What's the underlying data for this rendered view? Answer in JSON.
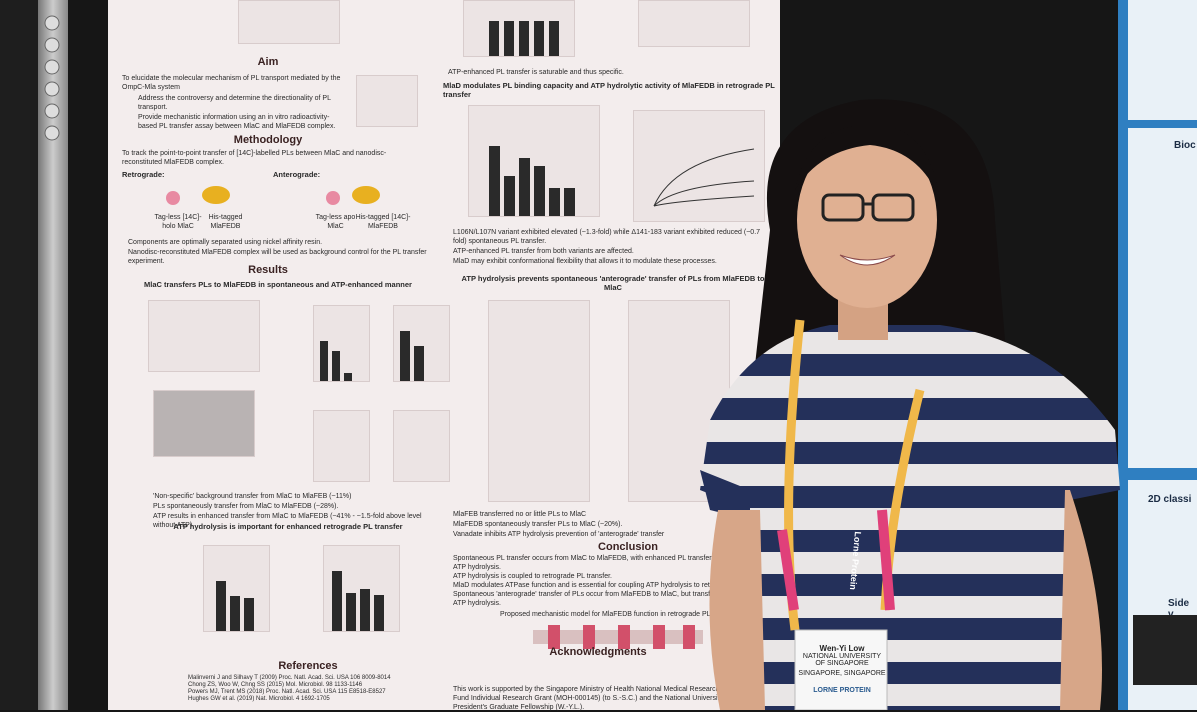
{
  "poster": {
    "aim": {
      "heading": "Aim",
      "lines": [
        "To elucidate the molecular mechanism of PL transport mediated by the OmpC-Mla system",
        "Address the controversy and determine the directionality of PL transport.",
        "Provide mechanistic information using an in vitro radioactivity-based PL transfer assay between MlaC and MlaFEDB complex."
      ]
    },
    "methodology": {
      "heading": "Methodology",
      "lines": [
        "To track the point-to-point transfer of [14C]-labelled PLs between MlaC and nanodisc-reconstituted MlaFEDB complex.",
        "Components are optimally separated using nickel affinity resin.",
        "Nanodisc-reconstituted MlaFEDB complex will be used as background control for the PL transfer experiment."
      ],
      "retrograde": "Retrograde:",
      "anterograde": "Anterograde:",
      "labels": [
        "Tag-less [14C]-holo MlaC",
        "His-tagged MlaFEDB",
        "Tag-less apo MlaC",
        "His-tagged [14C]-MlaFEDB"
      ]
    },
    "results": {
      "heading": "Results",
      "subtitle1": "MlaC transfers PLs to MlaFEDB in spontaneous and ATP-enhanced manner",
      "lines1": [
        "'Non-specific' background transfer from MlaC to MlaFEB (~11%)",
        "PLs spontaneously transfer from MlaC to MlaFEDB (~28%).",
        "ATP results in enhanced transfer from MlaC to MlaFEDB (~41% - ~1.5-fold above level without ATP)."
      ],
      "subtitle2": "ATP hydrolysis is important for enhanced retrograde PL transfer"
    },
    "references": {
      "heading": "References",
      "lines": [
        "Malinverni J and Silhavy T (2009) Proc. Natl. Acad. Sci. USA 106 8009-8014",
        "Chong ZS, Woo W, Chng SS (2015) Mol. Microbiol. 98 1133-1146",
        "Powers MJ, Trent MS (2018) Proc. Natl. Acad. Sci. USA 115 E8518-E8527",
        "Hughes GW et al. (2019) Nat. Microbiol. 4 1692-1705"
      ]
    },
    "right": {
      "line0": "ATP-enhanced PL transfer is saturable and thus specific.",
      "heading1": "MlaD modulates PL binding capacity and ATP hydrolytic activity of MlaFEDB in retrograde PL transfer",
      "lines1": [
        "L106N/L107N variant exhibited elevated (~1.3-fold) while Δ141-183 variant exhibited reduced (~0.7 fold) spontaneous PL transfer.",
        "ATP-enhanced PL transfer from both variants are affected.",
        "MlaD may exhibit conformational flexibility that allows it to modulate these processes."
      ],
      "heading2": "ATP hydrolysis prevents spontaneous 'anterograde' transfer of PLs from MlaFEDB to MlaC",
      "lines2": [
        "MlaFEB transferred no or little PLs to MlaC",
        "MlaFEDB spontaneously transfer PLs to MlaC (~20%).",
        "Vanadate inhibits ATP hydrolysis prevention of 'anterograde' transfer"
      ]
    },
    "conclusion": {
      "heading": "Conclusion",
      "lines": [
        "Spontaneous PL transfer occurs from MlaC to MlaFEDB, with enhanced PL transfer occurring upon ATP hydrolysis.",
        "ATP hydrolysis is coupled to retrograde PL transfer.",
        "MlaD modulates ATPase function and is essential for coupling ATP hydrolysis to retrograde PL transfer.",
        "Spontaneous 'anterograde' transfer of PLs occur from MlaFEDB to MlaC, but transfer is abolished by ATP hydrolysis."
      ],
      "model": "Proposed mechanistic model for MlaFEDB function in retrograde PL transfer"
    },
    "acknowledgments": {
      "heading": "Acknowledgments",
      "text": "This work is supported by the Singapore Ministry of Health National Medical Research Council Open Fund Individual Research Grant (MOH-000145) (to S.-S.C.) and the National University of Singapore President's Graduate Fellowship (W.-Y.L.)."
    }
  },
  "badge": {
    "name": "Wen-Yi Low",
    "affiliation": "NATIONAL UNIVERSITY OF SINGAPORE",
    "location": "SINGAPORE, SINGAPORE",
    "logo": "LORNE PROTEIN"
  },
  "lanyard": "Lorne Protein",
  "right_poster": {
    "heading1": "Bioc",
    "heading2": "2D classi",
    "heading3": "Side v"
  }
}
